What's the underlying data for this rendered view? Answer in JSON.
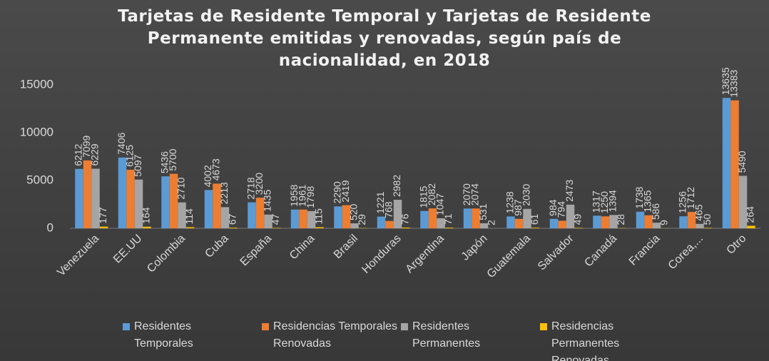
{
  "chart_data": {
    "type": "bar",
    "title": "Tarjetas de Residente Temporal y Tarjetas de Residente Permanente emitidas y renovadas, según país de nacionalidad, en 2018",
    "categories": [
      "Venezuela",
      "EE.UU",
      "Colombia",
      "Cuba",
      "España",
      "China",
      "Brasil",
      "Honduras",
      "Argentina",
      "Japón",
      "Guatemala",
      "Salvador",
      "Canadá",
      "Francia",
      "Corea,...",
      "Otro"
    ],
    "series": [
      {
        "name": "Residentes Temporales",
        "color": "#5b9bd5",
        "values": [
          6212,
          7406,
          5436,
          4002,
          2718,
          1958,
          2290,
          1221,
          1815,
          2070,
          1238,
          984,
          1317,
          1738,
          1256,
          13635
        ]
      },
      {
        "name": "Residencias Temporales Renovadas",
        "color": "#ed7d31",
        "values": [
          7099,
          6125,
          5700,
          4673,
          3200,
          1961,
          2419,
          768,
          2082,
          2074,
          987,
          794,
          1250,
          1365,
          1712,
          13383
        ]
      },
      {
        "name": "Residentes Permanentes",
        "color": "#a5a5a5",
        "values": [
          6229,
          5097,
          2710,
          2213,
          1435,
          1798,
          520,
          2982,
          1047,
          531,
          2030,
          2473,
          1394,
          586,
          465,
          5490
        ]
      },
      {
        "name": "Residencias Permanentes Renovadas",
        "color": "#ffc000",
        "values": [
          177,
          164,
          114,
          67,
          47,
          115,
          29,
          76,
          71,
          2,
          61,
          49,
          28,
          9,
          50,
          264
        ]
      }
    ],
    "ylim": [
      0,
      15000
    ],
    "yticks": [
      0,
      5000,
      10000,
      15000
    ],
    "grid": false,
    "legend": "bottom"
  }
}
